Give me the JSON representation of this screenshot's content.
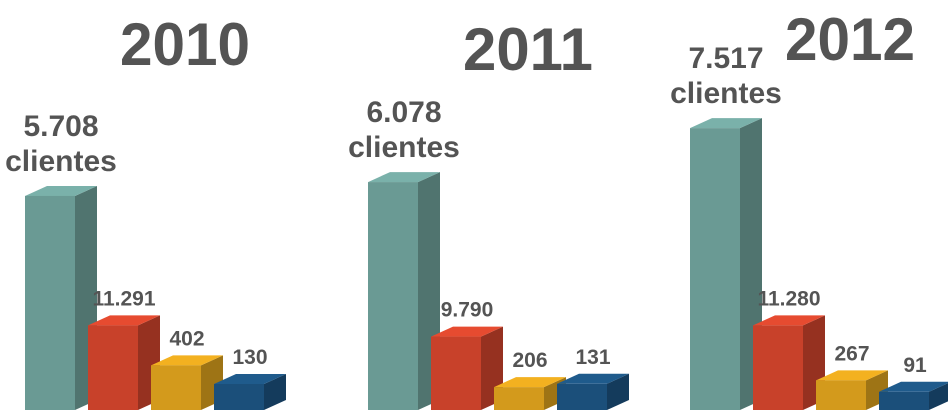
{
  "chart_data": [
    {
      "type": "bar3d",
      "title": "2010",
      "unit_label": "clientes",
      "values": [
        5708,
        11291,
        402,
        130
      ],
      "value_labels": [
        "5.708",
        "11.291",
        "402",
        "130"
      ],
      "colors": [
        "#6a9a94",
        "#c8412a",
        "#d39a1c",
        "#1b4f7a"
      ],
      "ylims": [
        [
          0,
          8000
        ],
        [
          0,
          40000
        ],
        [
          0,
          2700
        ],
        [
          0,
          1500
        ]
      ]
    },
    {
      "type": "bar3d",
      "title": "2011",
      "unit_label": "clientes",
      "values": [
        6078,
        9790,
        206,
        131
      ],
      "value_labels": [
        "6.078",
        "9.790",
        "206",
        "131"
      ],
      "colors": [
        "#6a9a94",
        "#c8412a",
        "#d39a1c",
        "#1b4f7a"
      ],
      "ylims": [
        [
          0,
          8000
        ],
        [
          0,
          40000
        ],
        [
          0,
          2700
        ],
        [
          0,
          1500
        ]
      ]
    },
    {
      "type": "bar3d",
      "title": "2012",
      "unit_label": "clientes",
      "values": [
        7517,
        11280,
        267,
        91
      ],
      "value_labels": [
        "7.517",
        "11.280",
        "267",
        "91"
      ],
      "colors": [
        "#6a9a94",
        "#c8412a",
        "#d39a1c",
        "#1b4f7a"
      ],
      "ylims": [
        [
          0,
          8000
        ],
        [
          0,
          40000
        ],
        [
          0,
          2700
        ],
        [
          0,
          1500
        ]
      ]
    }
  ]
}
